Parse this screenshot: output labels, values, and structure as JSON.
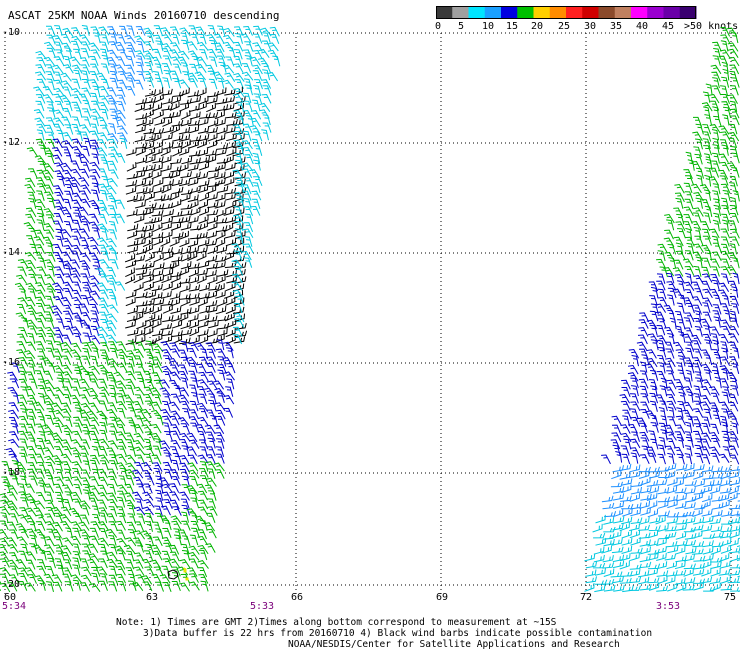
{
  "title": "ASCAT 25KM NOAA Winds 20160710 descending",
  "colorbar": {
    "labels": [
      "0",
      "5",
      "10",
      "15",
      "20",
      "25",
      "30",
      "35",
      "40",
      "45",
      ">50 knots"
    ],
    "colors": [
      "#3a3a3a",
      "#a0a0a0",
      "#00e5ff",
      "#1aa0ff",
      "#0000e0",
      "#00c000",
      "#ffd000",
      "#ff8c00",
      "#ff2020",
      "#d00000",
      "#8b4a2b",
      "#c08060",
      "#ff00ff",
      "#9b00d0",
      "#6a00a8",
      "#3a0070"
    ]
  },
  "lat_labels": [
    "-10",
    "-12",
    "-14",
    "-16",
    "-18",
    "-20"
  ],
  "lon_labels": [
    "60",
    "63",
    "66",
    "69",
    "72",
    "75"
  ],
  "pass_times": [
    "5:34",
    "5:33",
    "3:53"
  ],
  "notes": {
    "line1": "Note: 1) Times are GMT 2)Times along bottom correspond to measurement at ~15S",
    "line2": "3)Data buffer is 22 hrs from 20160710 4) Black wind barbs indicate possible contamination",
    "line3": "NOAA/NESDIS/Center for Satellite Applications and Research"
  },
  "wind_colors": {
    "black": "#000000",
    "cyan": "#00c8e0",
    "dodger": "#1e90ff",
    "blue": "#0000cc",
    "green": "#00b400",
    "yellow": "#e6e600"
  }
}
